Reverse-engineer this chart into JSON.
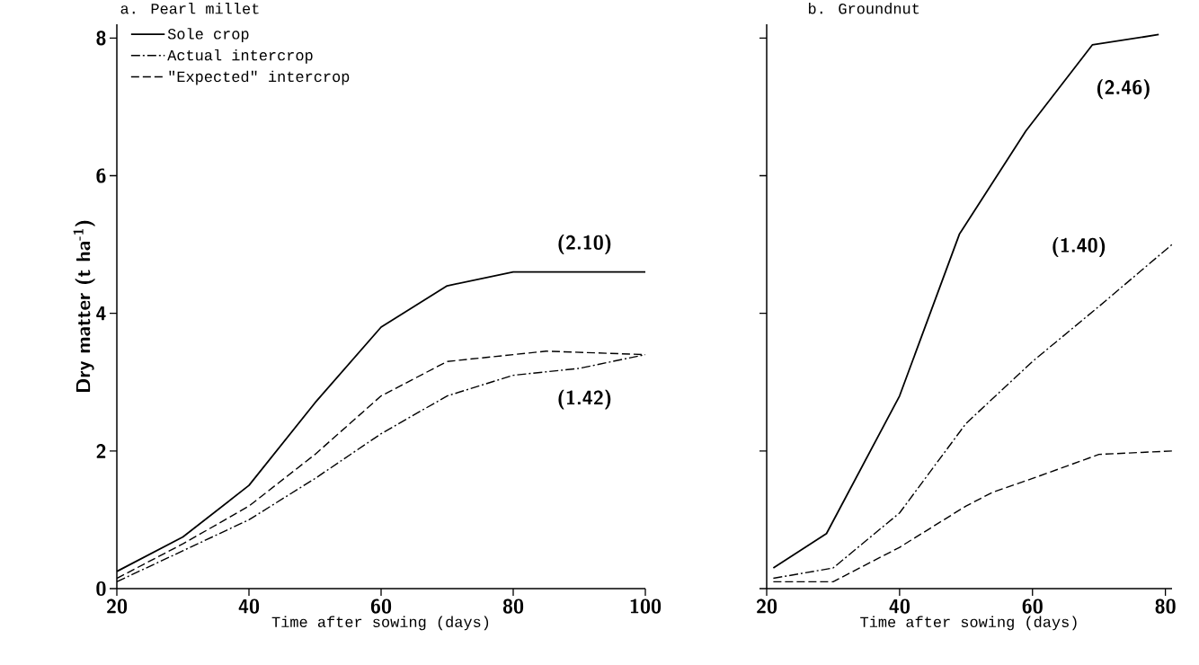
{
  "chart_data": [
    {
      "type": "line",
      "title": "a. Pearl millet",
      "xlabel": "Time after sowing (days)",
      "ylabel": "Dry matter (t ha$^{-1}$)",
      "xlim": [
        20,
        100
      ],
      "xticks": [
        20,
        40,
        60,
        80,
        100
      ],
      "ylim": [
        0,
        8.2
      ],
      "yticks": [
        0,
        2,
        4,
        6,
        8
      ],
      "grid": false,
      "legend": "top left",
      "series": [
        {
          "name": "Sole crop",
          "color": "#000000",
          "line_style": "solid",
          "x": [
            20,
            30,
            40,
            50,
            60,
            70,
            80,
            100
          ],
          "values": [
            0.25,
            0.75,
            1.5,
            2.7,
            3.8,
            4.4,
            4.6,
            4.6
          ]
        },
        {
          "name": "Actual intercrop",
          "color": "#000000",
          "line_style": "dashdot",
          "x": [
            20,
            30,
            40,
            50,
            60,
            70,
            80,
            90,
            100
          ],
          "values": [
            0.1,
            0.55,
            1.0,
            1.6,
            2.25,
            2.8,
            3.1,
            3.2,
            3.4
          ]
        },
        {
          "name": "\"Expected\" intercrop",
          "color": "#000000",
          "line_style": "dashed",
          "x": [
            20,
            30,
            40,
            50,
            60,
            70,
            85,
            100
          ],
          "values": [
            0.15,
            0.65,
            1.2,
            1.95,
            2.8,
            3.3,
            3.45,
            3.4
          ]
        }
      ],
      "annotations": [
        "(2.10)",
        "(1.42)"
      ]
    },
    {
      "type": "line",
      "title": "b. Groundnut",
      "xlabel": "Time after sowing (days)",
      "xlim": [
        20,
        81
      ],
      "xticks": [
        20,
        40,
        60,
        80
      ],
      "ylim": [
        0,
        8.2
      ],
      "yticks": [
        {
          "value": 0,
          "label": null
        },
        {
          "value": 2,
          "label": null
        },
        {
          "value": 4,
          "label": null
        },
        {
          "value": 6,
          "label": null
        },
        {
          "value": 8,
          "label": null
        }
      ],
      "grid": false,
      "tick_labels": "x",
      "series": [
        {
          "color": "#000000",
          "line_style": "solid",
          "x": [
            21,
            29,
            40,
            49,
            59,
            69,
            79
          ],
          "values": [
            0.3,
            0.8,
            2.8,
            5.15,
            6.65,
            7.9,
            8.05
          ]
        },
        {
          "color": "#000000",
          "line_style": "dashdot",
          "x": [
            21,
            30,
            40,
            50,
            60,
            70,
            81
          ],
          "values": [
            0.15,
            0.3,
            1.1,
            2.4,
            3.3,
            4.1,
            5.0
          ]
        },
        {
          "color": "#000000",
          "line_style": "dashed",
          "x": [
            21,
            30,
            40,
            50,
            54,
            60,
            70,
            81
          ],
          "values": [
            0.1,
            0.1,
            0.6,
            1.2,
            1.4,
            1.6,
            1.95,
            2.0
          ]
        }
      ],
      "annotations": [
        "(2.46)",
        "(1.40)"
      ]
    }
  ]
}
